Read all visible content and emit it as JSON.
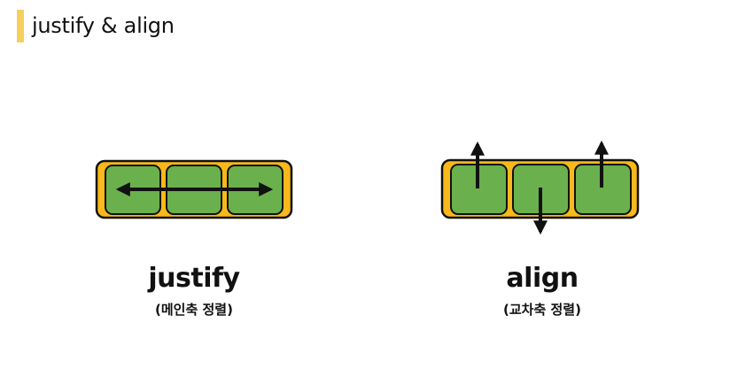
{
  "header": {
    "title": "justify & align"
  },
  "colors": {
    "accent_bar": "#f6d05d",
    "container_fill": "#f9b81b",
    "item_fill": "#6ab04c",
    "stroke": "#111111"
  },
  "diagrams": {
    "justify": {
      "label": "justify",
      "sublabel": "(메인축 정렬)"
    },
    "align": {
      "label": "align",
      "sublabel": "(교차축 정렬)"
    }
  }
}
